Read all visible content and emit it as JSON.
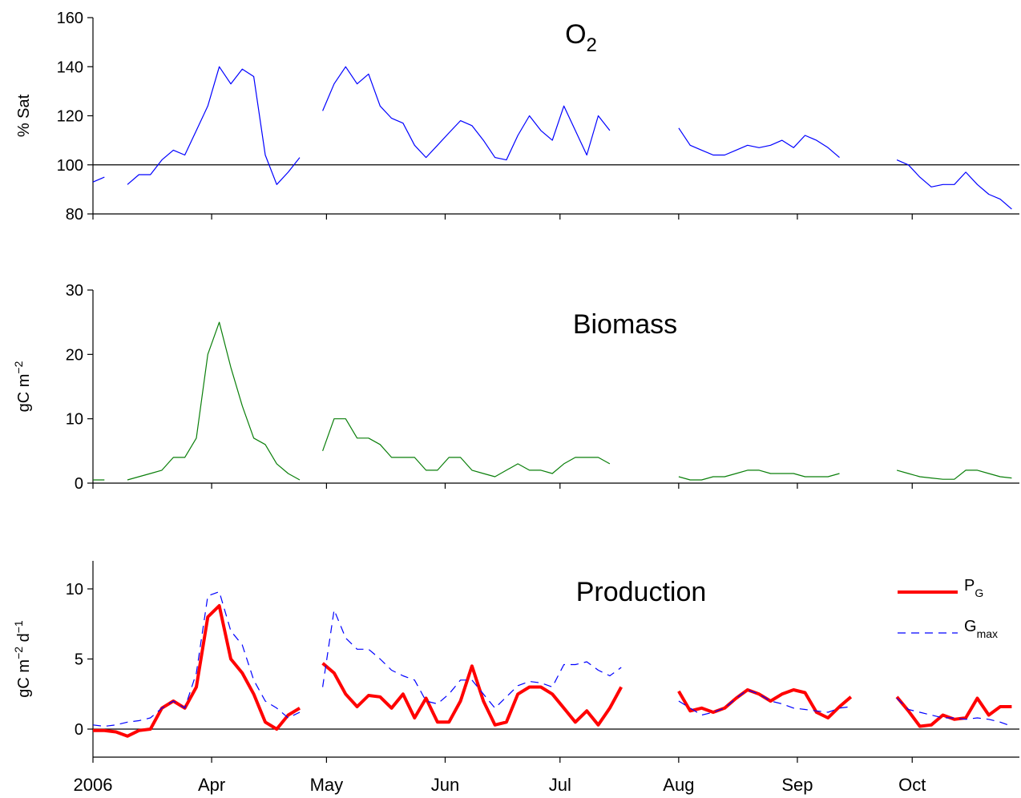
{
  "chart_data": [
    {
      "type": "line",
      "title": "O",
      "title_subscript": "2",
      "ylabel": [
        "% Sat"
      ],
      "x": [
        0,
        3,
        6,
        9,
        12,
        15,
        18,
        21,
        24,
        27,
        30,
        33,
        36,
        39,
        42,
        45,
        48,
        51,
        54,
        57,
        60,
        63,
        66,
        69,
        72,
        75,
        78,
        81,
        84,
        87,
        90,
        93,
        96,
        99,
        102,
        105,
        108,
        111,
        114,
        117,
        120,
        123,
        126,
        129,
        132,
        135,
        138,
        141,
        144,
        147,
        150,
        153,
        156,
        159,
        162,
        165,
        168,
        171,
        174,
        177,
        180,
        183,
        186,
        189,
        192,
        195,
        198,
        201,
        204,
        207,
        210,
        213,
        216,
        219,
        222,
        225,
        228,
        231,
        234,
        237,
        240
      ],
      "values": [
        93,
        95,
        null,
        92,
        96,
        96,
        102,
        106,
        104,
        114,
        124,
        140,
        133,
        139,
        136,
        104,
        92,
        97,
        103,
        null,
        122,
        133,
        140,
        133,
        137,
        124,
        119,
        117,
        108,
        103,
        108,
        113,
        118,
        116,
        110,
        103,
        102,
        112,
        120,
        114,
        110,
        124,
        114,
        104,
        120,
        114,
        null,
        null,
        null,
        null,
        null,
        115,
        108,
        106,
        104,
        104,
        106,
        108,
        107,
        108,
        110,
        107,
        112,
        110,
        107,
        103,
        null,
        null,
        null,
        null,
        102,
        100,
        95,
        91,
        92,
        92,
        97,
        92,
        88,
        86,
        82
      ],
      "color": "#0000ff",
      "linewidth": 1.2,
      "hline": 100,
      "xlim": [
        0,
        242
      ],
      "xticks": [
        0,
        31,
        61,
        92,
        122,
        153,
        184,
        214
      ],
      "ylim": [
        80,
        160
      ],
      "yticks": [
        80,
        100,
        120,
        140,
        160
      ]
    },
    {
      "type": "line",
      "title": "Biomass",
      "ylabel": [
        "gC m",
        "−2"
      ],
      "x": [
        0,
        3,
        6,
        9,
        12,
        15,
        18,
        21,
        24,
        27,
        30,
        33,
        36,
        39,
        42,
        45,
        48,
        51,
        54,
        57,
        60,
        63,
        66,
        69,
        72,
        75,
        78,
        81,
        84,
        87,
        90,
        93,
        96,
        99,
        102,
        105,
        108,
        111,
        114,
        117,
        120,
        123,
        126,
        129,
        132,
        135,
        138,
        141,
        144,
        147,
        150,
        153,
        156,
        159,
        162,
        165,
        168,
        171,
        174,
        177,
        180,
        183,
        186,
        189,
        192,
        195,
        198,
        201,
        204,
        207,
        210,
        213,
        216,
        219,
        222,
        225,
        228,
        231,
        234,
        237,
        240
      ],
      "values": [
        0.5,
        0.5,
        null,
        0.5,
        1,
        1.5,
        2,
        4,
        4,
        7,
        20,
        25,
        18,
        12,
        7,
        6,
        3,
        1.5,
        0.5,
        null,
        5,
        10,
        10,
        7,
        7,
        6,
        4,
        4,
        4,
        2,
        2,
        4,
        4,
        2,
        1.5,
        1,
        2,
        3,
        2,
        2,
        1.5,
        3,
        4,
        4,
        4,
        3,
        null,
        null,
        null,
        null,
        null,
        1,
        0.5,
        0.5,
        1,
        1,
        1.5,
        2,
        2,
        1.5,
        1.5,
        1.5,
        1,
        1,
        1,
        1.5,
        null,
        null,
        null,
        null,
        2,
        1.5,
        1,
        0.8,
        0.6,
        0.6,
        2,
        2,
        1.5,
        1,
        0.8
      ],
      "color": "#0a7f0a",
      "linewidth": 1.2,
      "xlim": [
        0,
        242
      ],
      "xticks": [
        0,
        31,
        61,
        92,
        122,
        153,
        184,
        214
      ],
      "ylim": [
        0,
        30
      ],
      "yticks": [
        0,
        10,
        20,
        30
      ]
    },
    {
      "type": "line",
      "title": "Production",
      "ylabel": [
        "gC m",
        "−2",
        " d",
        "−1"
      ],
      "x": [
        0,
        3,
        6,
        9,
        12,
        15,
        18,
        21,
        24,
        27,
        30,
        33,
        36,
        39,
        42,
        45,
        48,
        51,
        54,
        57,
        60,
        63,
        66,
        69,
        72,
        75,
        78,
        81,
        84,
        87,
        90,
        93,
        96,
        99,
        102,
        105,
        108,
        111,
        114,
        117,
        120,
        123,
        126,
        129,
        132,
        135,
        138,
        141,
        144,
        147,
        150,
        153,
        156,
        159,
        162,
        165,
        168,
        171,
        174,
        177,
        180,
        183,
        186,
        189,
        192,
        195,
        198,
        201,
        204,
        207,
        210,
        213,
        216,
        219,
        222,
        225,
        228,
        231,
        234,
        237,
        240
      ],
      "series": [
        {
          "name": "P",
          "name_subscript": "G",
          "color": "#ff0000",
          "linewidth": 4,
          "dashed": false,
          "values": [
            -0.1,
            -0.1,
            -0.2,
            -0.5,
            -0.1,
            0,
            1.5,
            2,
            1.5,
            3,
            8,
            8.8,
            5,
            4,
            2.5,
            0.5,
            0,
            1,
            1.5,
            null,
            4.7,
            4,
            2.5,
            1.6,
            2.4,
            2.3,
            1.5,
            2.5,
            0.8,
            2.2,
            0.5,
            0.5,
            2,
            4.5,
            2,
            0.3,
            0.5,
            2.5,
            3,
            3,
            2.5,
            1.5,
            0.5,
            1.3,
            0.3,
            1.5,
            3,
            null,
            null,
            null,
            null,
            2.7,
            1.3,
            1.5,
            1.2,
            1.5,
            2.2,
            2.8,
            2.5,
            2,
            2.5,
            2.8,
            2.6,
            1.2,
            0.8,
            1.6,
            2.3,
            null,
            null,
            null,
            2.3,
            1.3,
            0.2,
            0.3,
            1,
            0.7,
            0.8,
            2.2,
            1,
            1.6,
            1.6
          ]
        },
        {
          "name": "G",
          "name_subscript": "max",
          "color": "#0000ff",
          "linewidth": 1.2,
          "dashed": true,
          "values": [
            0.3,
            0.2,
            0.3,
            0.5,
            0.6,
            0.8,
            1.5,
            2,
            1.5,
            4,
            9.5,
            9.8,
            7,
            6,
            3.5,
            2,
            1.5,
            0.8,
            1.2,
            null,
            3,
            8.5,
            6.5,
            5.7,
            5.7,
            5,
            4.2,
            3.8,
            3.5,
            2,
            1.8,
            2.5,
            3.5,
            3.5,
            2.5,
            1.5,
            2.3,
            3.1,
            3.4,
            3.3,
            3,
            4.6,
            4.6,
            4.8,
            4.2,
            3.8,
            4.4,
            null,
            null,
            null,
            null,
            2,
            1.5,
            1,
            1.2,
            1.5,
            2.2,
            2.8,
            2.5,
            2,
            1.8,
            1.5,
            1.4,
            1.3,
            1.2,
            1.5,
            1.6,
            null,
            null,
            null,
            2.2,
            1.4,
            1.2,
            1,
            0.8,
            0.8,
            0.7,
            0.8,
            0.7,
            0.5,
            0.2
          ]
        }
      ],
      "hline": 0,
      "legend": "upper right",
      "xlim": [
        0,
        242
      ],
      "xticks": [
        {
          "value": 0,
          "label": "2006"
        },
        {
          "value": 31,
          "label": "Apr"
        },
        {
          "value": 61,
          "label": "May"
        },
        {
          "value": 92,
          "label": "Jun"
        },
        {
          "value": 122,
          "label": "Jul"
        },
        {
          "value": 153,
          "label": "Aug"
        },
        {
          "value": 184,
          "label": "Sep"
        },
        {
          "value": 214,
          "label": "Oct"
        }
      ],
      "ylim": [
        -2,
        12
      ],
      "yticks": [
        0,
        5,
        10
      ]
    }
  ]
}
